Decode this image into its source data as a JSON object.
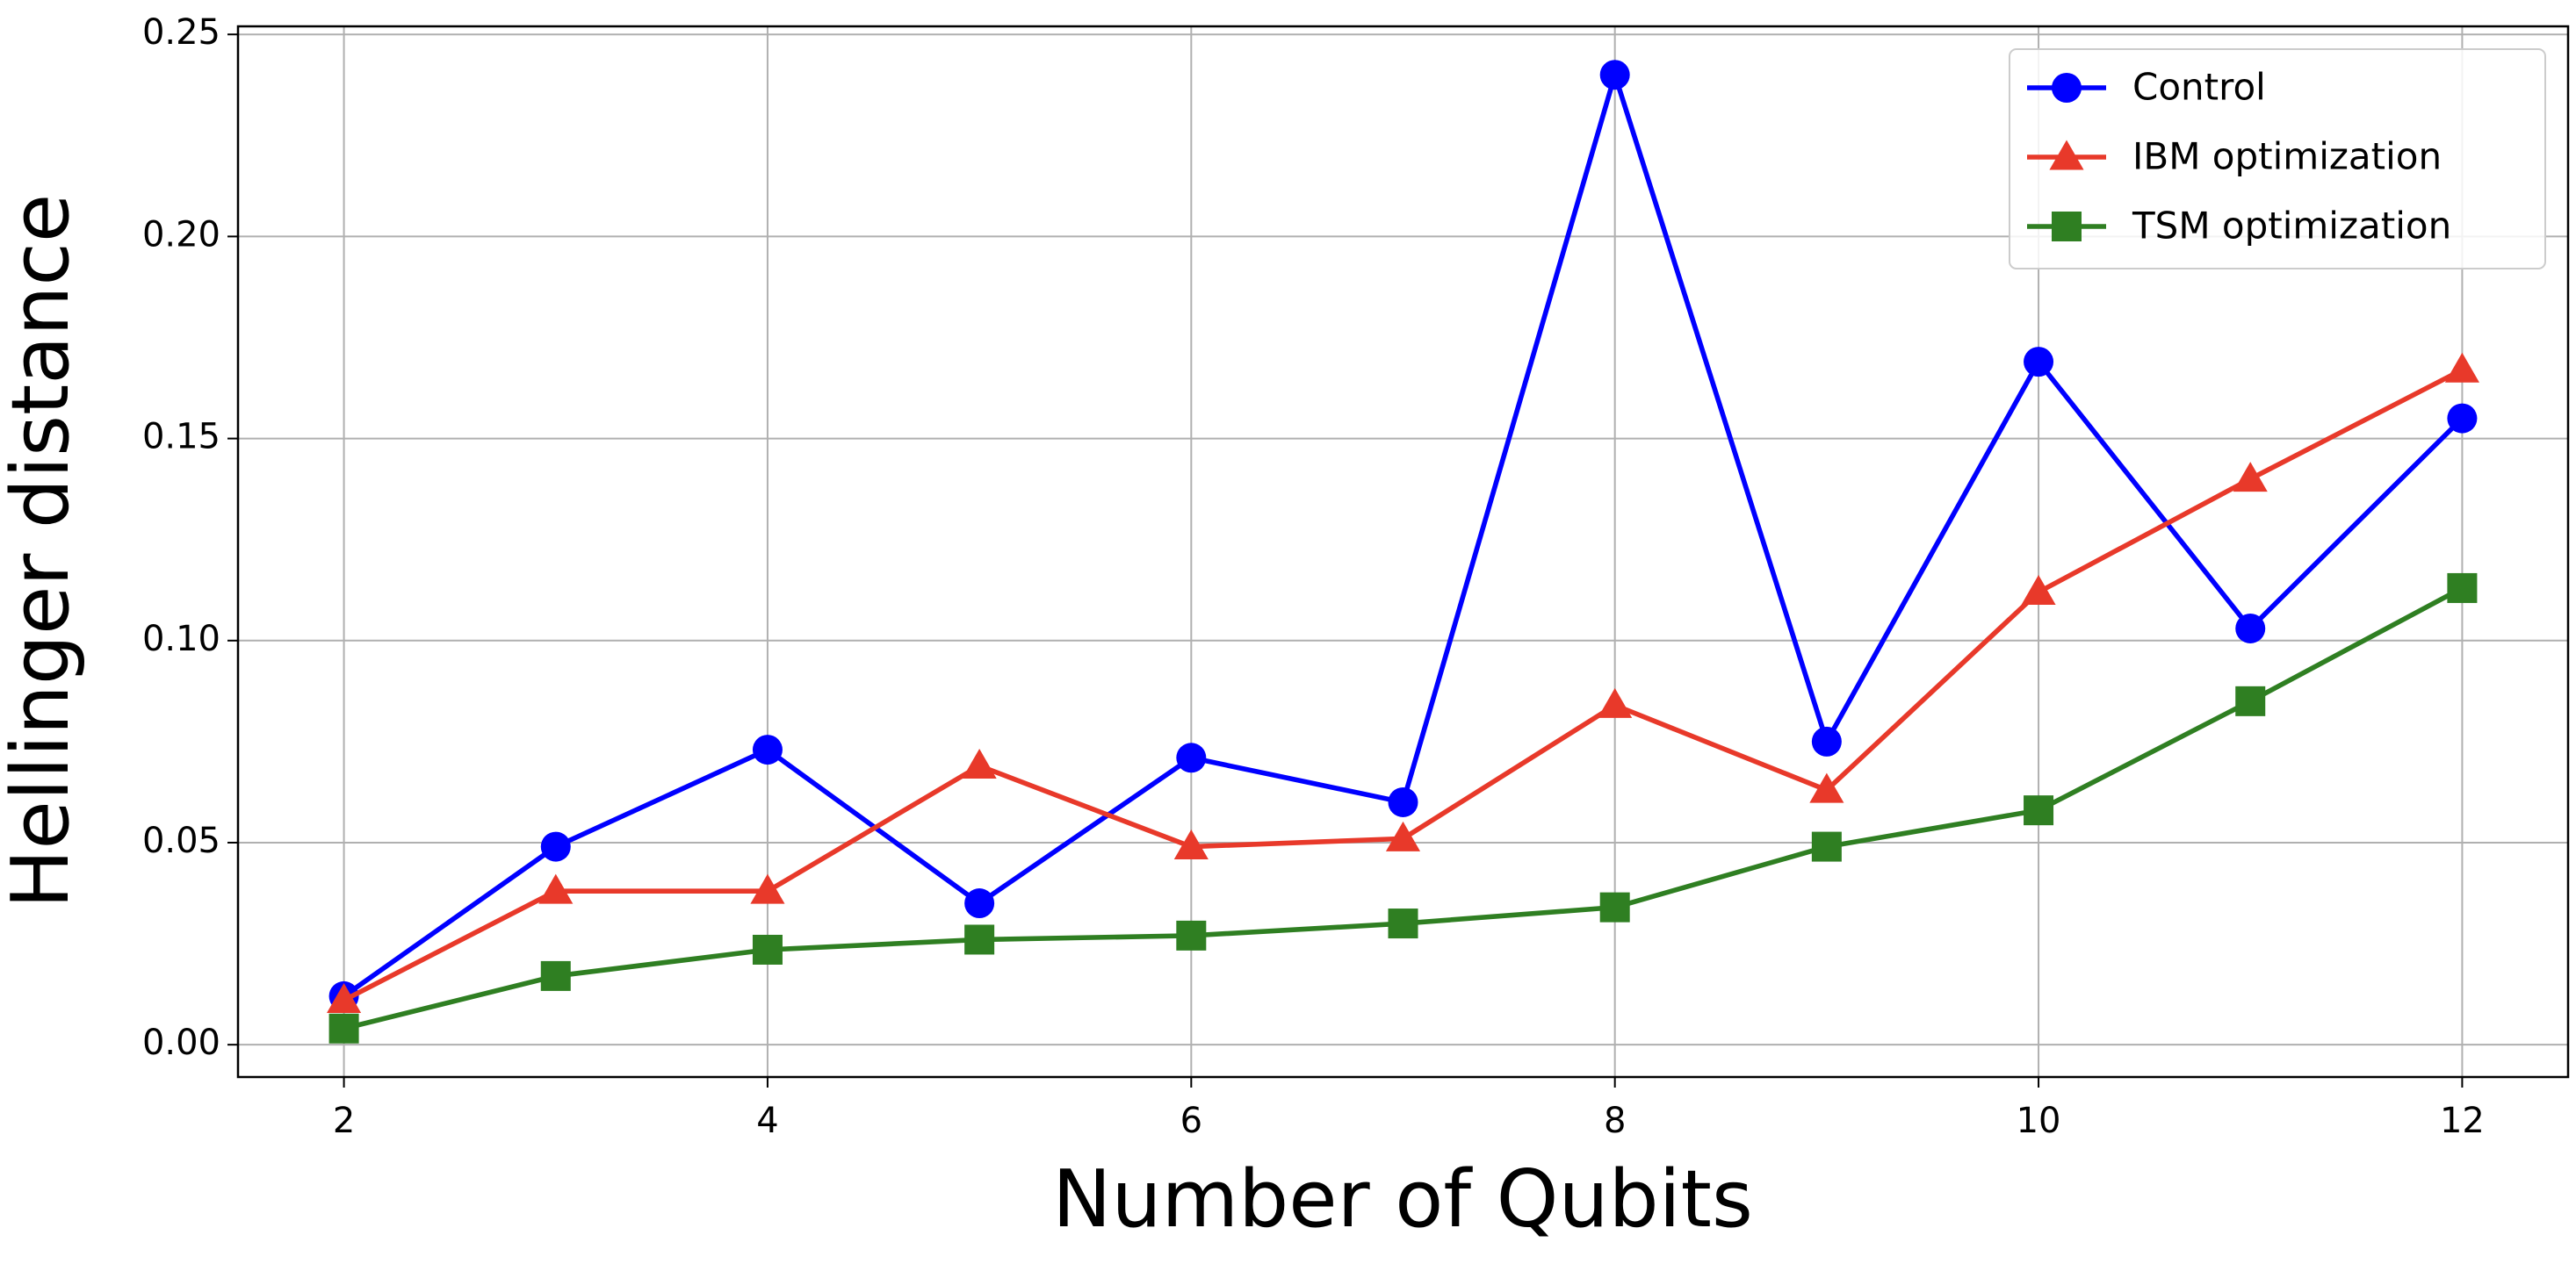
{
  "chart_data": {
    "type": "line",
    "xlabel": "Number of Qubits",
    "ylabel": "Hellinger distance",
    "x": [
      2,
      3,
      4,
      5,
      6,
      7,
      8,
      9,
      10,
      11,
      12
    ],
    "series": [
      {
        "name": "Control",
        "color": "#0000ff",
        "marker": "circle",
        "values": [
          0.012,
          0.049,
          0.073,
          0.035,
          0.071,
          0.06,
          0.24,
          0.075,
          0.169,
          0.103,
          0.155
        ]
      },
      {
        "name": "IBM optimization",
        "color": "#e8392a",
        "marker": "triangle",
        "values": [
          0.011,
          0.038,
          0.038,
          0.069,
          0.049,
          0.051,
          0.084,
          0.063,
          0.112,
          0.14,
          0.167
        ]
      },
      {
        "name": "TSM optimization",
        "color": "#2f7f22",
        "marker": "square",
        "values": [
          0.004,
          0.017,
          0.0235,
          0.026,
          0.027,
          0.03,
          0.034,
          0.049,
          0.058,
          0.085,
          0.113
        ]
      }
    ],
    "xlim": [
      1.5,
      12.5
    ],
    "ylim": [
      -0.008,
      0.252
    ],
    "xticks": [
      2,
      4,
      6,
      8,
      10,
      12
    ],
    "yticks": [
      {
        "value": 0,
        "label": "0.00"
      },
      {
        "value": 0.05,
        "label": "0.05"
      },
      {
        "value": 0.1,
        "label": "0.10"
      },
      {
        "value": 0.15,
        "label": "0.15"
      },
      {
        "value": 0.2,
        "label": "0.20"
      },
      {
        "value": 0.25,
        "label": "0.25"
      }
    ],
    "grid": true,
    "legend": "upper right"
  }
}
